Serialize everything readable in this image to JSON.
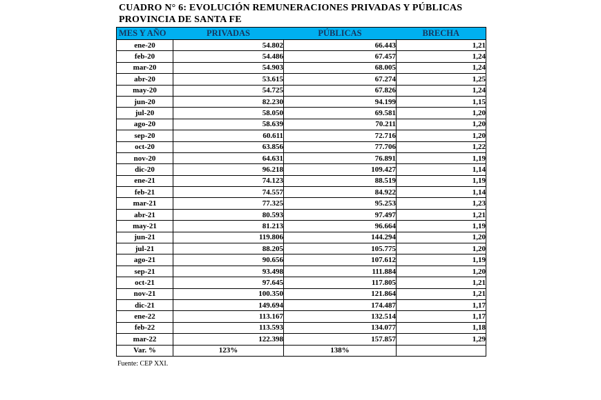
{
  "title": {
    "line1": "CUADRO N° 6: EVOLUCIÓN REMUNERACIONES PRIVADAS Y PÚBLICAS",
    "line2": "PROVINCIA DE SANTA FE"
  },
  "table": {
    "columns": [
      "MES Y AÑO",
      "PRIVADAS",
      "PÚBLICAS",
      "BRECHA"
    ],
    "rows": [
      [
        "ene-20",
        "54.802",
        "66.443",
        "1,21"
      ],
      [
        "feb-20",
        "54.486",
        "67.457",
        "1,24"
      ],
      [
        "mar-20",
        "54.903",
        "68.005",
        "1,24"
      ],
      [
        "abr-20",
        "53.615",
        "67.274",
        "1,25"
      ],
      [
        "may-20",
        "54.725",
        "67.826",
        "1,24"
      ],
      [
        "jun-20",
        "82.230",
        "94.199",
        "1,15"
      ],
      [
        "jul-20",
        "58.050",
        "69.581",
        "1,20"
      ],
      [
        "ago-20",
        "58.639",
        "70.211",
        "1,20"
      ],
      [
        "sep-20",
        "60.611",
        "72.716",
        "1,20"
      ],
      [
        "oct-20",
        "63.856",
        "77.706",
        "1,22"
      ],
      [
        "nov-20",
        "64.631",
        "76.891",
        "1,19"
      ],
      [
        "dic-20",
        "96.218",
        "109.427",
        "1,14"
      ],
      [
        "ene-21",
        "74.123",
        "88.519",
        "1,19"
      ],
      [
        "feb-21",
        "74.557",
        "84.922",
        "1,14"
      ],
      [
        "mar-21",
        "77.325",
        "95.253",
        "1,23"
      ],
      [
        "abr-21",
        "80.593",
        "97.497",
        "1,21"
      ],
      [
        "may-21",
        "81.213",
        "96.664",
        "1,19"
      ],
      [
        "jun-21",
        "119.806",
        "144.294",
        "1,20"
      ],
      [
        "jul-21",
        "88.205",
        "105.775",
        "1,20"
      ],
      [
        "ago-21",
        "90.656",
        "107.612",
        "1,19"
      ],
      [
        "sep-21",
        "93.498",
        "111.884",
        "1,20"
      ],
      [
        "oct-21",
        "97.645",
        "117.805",
        "1,21"
      ],
      [
        "nov-21",
        "100.350",
        "121.864",
        "1,21"
      ],
      [
        "dic-21",
        "149.694",
        "174.487",
        "1,17"
      ],
      [
        "ene-22",
        "113.167",
        "132.514",
        "1,17"
      ],
      [
        "feb-22",
        "113.593",
        "134.077",
        "1,18"
      ],
      [
        "mar-22",
        "122.398",
        "157.857",
        "1,29"
      ]
    ],
    "summary_row": {
      "label": "Var. %",
      "privadas": "123%",
      "publicas": "138%",
      "brecha": ""
    }
  },
  "footer": {
    "source": "Fuente: CEP XXI."
  },
  "colors": {
    "header_bg": "#00B0F0",
    "header_text": "#17365D",
    "border": "#000000",
    "background": "#ffffff"
  }
}
